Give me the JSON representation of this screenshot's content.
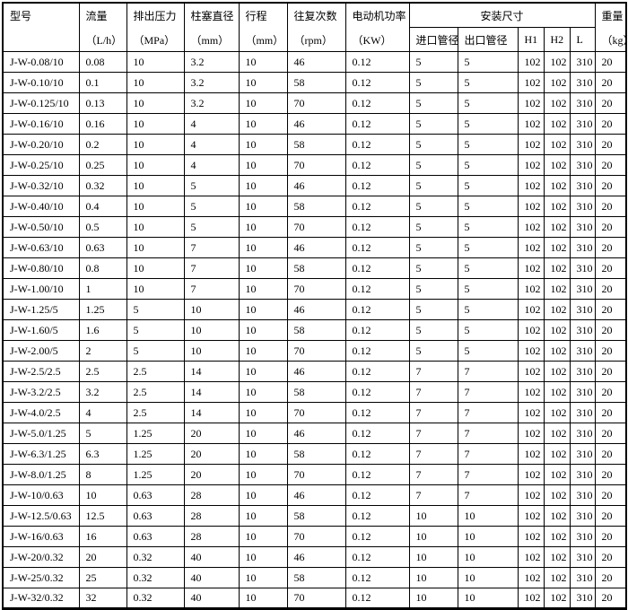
{
  "table": {
    "header": {
      "model_label": "型号",
      "cols": [
        {
          "label": "流量",
          "unit": "（L/h）"
        },
        {
          "label": "排出压力",
          "unit": "（MPa）"
        },
        {
          "label": "柱塞直径",
          "unit": "（mm）"
        },
        {
          "label": "行程",
          "unit": "（mm）"
        },
        {
          "label": "往复次数",
          "unit": "（rpm）"
        },
        {
          "label": "电动机功率",
          "unit": "（KW）"
        }
      ],
      "mounting_label": "安装尺寸",
      "mounting_sub": [
        "进口管径",
        "出口管径",
        "H1",
        "H2",
        "L"
      ],
      "weight_label": "重量",
      "weight_unit": "（kg）"
    },
    "rows": [
      [
        "J-W-0.08/10",
        "0.08",
        "10",
        "3.2",
        "10",
        "46",
        "0.12",
        "5",
        "5",
        "102",
        "102",
        "310",
        "20"
      ],
      [
        "J-W-0.10/10",
        "0.1",
        "10",
        "3.2",
        "10",
        "58",
        "0.12",
        "5",
        "5",
        "102",
        "102",
        "310",
        "20"
      ],
      [
        "J-W-0.125/10",
        "0.13",
        "10",
        "3.2",
        "10",
        "70",
        "0.12",
        "5",
        "5",
        "102",
        "102",
        "310",
        "20"
      ],
      [
        "J-W-0.16/10",
        "0.16",
        "10",
        "4",
        "10",
        "46",
        "0.12",
        "5",
        "5",
        "102",
        "102",
        "310",
        "20"
      ],
      [
        "J-W-0.20/10",
        "0.2",
        "10",
        "4",
        "10",
        "58",
        "0.12",
        "5",
        "5",
        "102",
        "102",
        "310",
        "20"
      ],
      [
        "J-W-0.25/10",
        "0.25",
        "10",
        "4",
        "10",
        "70",
        "0.12",
        "5",
        "5",
        "102",
        "102",
        "310",
        "20"
      ],
      [
        "J-W-0.32/10",
        "0.32",
        "10",
        "5",
        "10",
        "46",
        "0.12",
        "5",
        "5",
        "102",
        "102",
        "310",
        "20"
      ],
      [
        "J-W-0.40/10",
        "0.4",
        "10",
        "5",
        "10",
        "58",
        "0.12",
        "5",
        "5",
        "102",
        "102",
        "310",
        "20"
      ],
      [
        "J-W-0.50/10",
        "0.5",
        "10",
        "5",
        "10",
        "70",
        "0.12",
        "5",
        "5",
        "102",
        "102",
        "310",
        "20"
      ],
      [
        "J-W-0.63/10",
        "0.63",
        "10",
        "7",
        "10",
        "46",
        "0.12",
        "5",
        "5",
        "102",
        "102",
        "310",
        "20"
      ],
      [
        "J-W-0.80/10",
        "0.8",
        "10",
        "7",
        "10",
        "58",
        "0.12",
        "5",
        "5",
        "102",
        "102",
        "310",
        "20"
      ],
      [
        "J-W-1.00/10",
        "1",
        "10",
        "7",
        "10",
        "70",
        "0.12",
        "5",
        "5",
        "102",
        "102",
        "310",
        "20"
      ],
      [
        "J-W-1.25/5",
        "1.25",
        "5",
        "10",
        "10",
        "46",
        "0.12",
        "5",
        "5",
        "102",
        "102",
        "310",
        "20"
      ],
      [
        "J-W-1.60/5",
        "1.6",
        "5",
        "10",
        "10",
        "58",
        "0.12",
        "5",
        "5",
        "102",
        "102",
        "310",
        "20"
      ],
      [
        "J-W-2.00/5",
        "2",
        "5",
        "10",
        "10",
        "70",
        "0.12",
        "5",
        "5",
        "102",
        "102",
        "310",
        "20"
      ],
      [
        "J-W-2.5/2.5",
        "2.5",
        "2.5",
        "14",
        "10",
        "46",
        "0.12",
        "7",
        "7",
        "102",
        "102",
        "310",
        "20"
      ],
      [
        "J-W-3.2/2.5",
        "3.2",
        "2.5",
        "14",
        "10",
        "58",
        "0.12",
        "7",
        "7",
        "102",
        "102",
        "310",
        "20"
      ],
      [
        "J-W-4.0/2.5",
        "4",
        "2.5",
        "14",
        "10",
        "70",
        "0.12",
        "7",
        "7",
        "102",
        "102",
        "310",
        "20"
      ],
      [
        "J-W-5.0/1.25",
        "5",
        "1.25",
        "20",
        "10",
        "46",
        "0.12",
        "7",
        "7",
        "102",
        "102",
        "310",
        "20"
      ],
      [
        "J-W-6.3/1.25",
        "6.3",
        "1.25",
        "20",
        "10",
        "58",
        "0.12",
        "7",
        "7",
        "102",
        "102",
        "310",
        "20"
      ],
      [
        "J-W-8.0/1.25",
        "8",
        "1.25",
        "20",
        "10",
        "70",
        "0.12",
        "7",
        "7",
        "102",
        "102",
        "310",
        "20"
      ],
      [
        "J-W-10/0.63",
        "10",
        "0.63",
        "28",
        "10",
        "46",
        "0.12",
        "7",
        "7",
        "102",
        "102",
        "310",
        "20"
      ],
      [
        "J-W-12.5/0.63",
        "12.5",
        "0.63",
        "28",
        "10",
        "58",
        "0.12",
        "10",
        "10",
        "102",
        "102",
        "310",
        "20"
      ],
      [
        "J-W-16/0.63",
        "16",
        "0.63",
        "28",
        "10",
        "70",
        "0.12",
        "10",
        "10",
        "102",
        "102",
        "310",
        "20"
      ],
      [
        "J-W-20/0.32",
        "20",
        "0.32",
        "40",
        "10",
        "46",
        "0.12",
        "10",
        "10",
        "102",
        "102",
        "310",
        "20"
      ],
      [
        "J-W-25/0.32",
        "25",
        "0.32",
        "40",
        "10",
        "58",
        "0.12",
        "10",
        "10",
        "102",
        "102",
        "310",
        "20"
      ],
      [
        "J-W-32/0.32",
        "32",
        "0.32",
        "40",
        "10",
        "70",
        "0.12",
        "10",
        "10",
        "102",
        "102",
        "310",
        "20"
      ]
    ]
  }
}
